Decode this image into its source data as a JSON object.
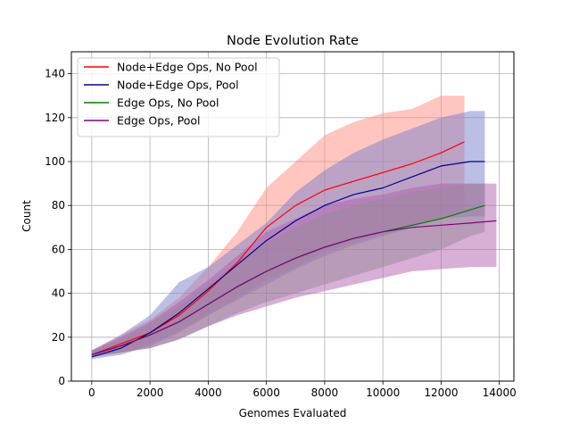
{
  "chart_data": {
    "type": "line",
    "title": "Node Evolution Rate",
    "xlabel": "Genomes Evaluated",
    "ylabel": "Count",
    "xlim": [
      -700,
      14500
    ],
    "ylim": [
      0,
      150
    ],
    "xticks": [
      0,
      2000,
      4000,
      6000,
      8000,
      10000,
      12000,
      14000
    ],
    "yticks": [
      0,
      20,
      40,
      60,
      80,
      100,
      120,
      140
    ],
    "grid": true,
    "legend": "top-left",
    "series": [
      {
        "name": "Node+Edge Ops, No Pool",
        "color": "#ff0000",
        "band_color": "#ff8c80",
        "x": [
          0,
          1000,
          2000,
          3000,
          4000,
          5000,
          6000,
          7000,
          8000,
          9000,
          10000,
          11000,
          12000,
          12800
        ],
        "y": [
          12,
          17,
          22,
          30,
          41,
          54,
          70,
          80,
          87,
          91,
          95,
          99,
          104,
          109
        ],
        "lower": [
          11,
          13,
          17,
          23,
          30,
          38,
          46,
          52,
          59,
          63,
          67,
          71,
          75,
          78
        ],
        "upper": [
          14,
          21,
          28,
          38,
          52,
          68,
          88,
          100,
          112,
          118,
          122,
          124,
          130,
          130
        ]
      },
      {
        "name": "Node+Edge Ops, Pool",
        "color": "#00008b",
        "band_color": "#7a80cc",
        "x": [
          0,
          1000,
          2000,
          3000,
          4000,
          5000,
          6000,
          7000,
          8000,
          9000,
          10000,
          11000,
          12000,
          13000,
          13500
        ],
        "y": [
          11,
          15,
          22,
          31,
          42,
          53,
          64,
          73,
          80,
          85,
          88,
          93,
          98,
          100,
          100
        ],
        "lower": [
          10,
          12,
          16,
          22,
          30,
          37,
          44,
          51,
          57,
          62,
          66,
          70,
          74,
          75,
          75
        ],
        "upper": [
          14,
          21,
          30,
          45,
          52,
          62,
          72,
          86,
          96,
          104,
          110,
          115,
          120,
          123,
          123
        ]
      },
      {
        "name": "Edge Ops, No Pool",
        "color": "#008000",
        "band_color": "#80b080",
        "x": [
          0,
          1000,
          2000,
          3000,
          4000,
          5000,
          6000,
          7000,
          8000,
          9000,
          10000,
          11000,
          12000,
          13000,
          13500
        ],
        "y": [
          12,
          16,
          21,
          27,
          35,
          43,
          50,
          56,
          61,
          65,
          68,
          71,
          74,
          78,
          80
        ],
        "lower": [
          11,
          13,
          15,
          19,
          25,
          31,
          36,
          40,
          44,
          48,
          52,
          56,
          60,
          66,
          68
        ],
        "upper": [
          14,
          19,
          26,
          34,
          44,
          54,
          63,
          70,
          76,
          80,
          83,
          86,
          88,
          90,
          90
        ]
      },
      {
        "name": "Edge Ops, Pool",
        "color": "#800080",
        "band_color": "#b060b0",
        "x": [
          0,
          1000,
          2000,
          3000,
          4000,
          5000,
          6000,
          7000,
          8000,
          9000,
          10000,
          11000,
          12000,
          13000,
          13900
        ],
        "y": [
          12,
          16,
          21,
          27,
          35,
          43,
          50,
          56,
          61,
          65,
          68,
          70,
          71,
          72,
          73
        ],
        "lower": [
          11,
          13,
          15,
          19,
          25,
          30,
          34,
          38,
          41,
          44,
          47,
          50,
          51,
          52,
          52
        ],
        "upper": [
          14,
          20,
          27,
          36,
          46,
          57,
          68,
          74,
          80,
          83,
          85,
          88,
          90,
          90,
          90
        ]
      }
    ]
  }
}
